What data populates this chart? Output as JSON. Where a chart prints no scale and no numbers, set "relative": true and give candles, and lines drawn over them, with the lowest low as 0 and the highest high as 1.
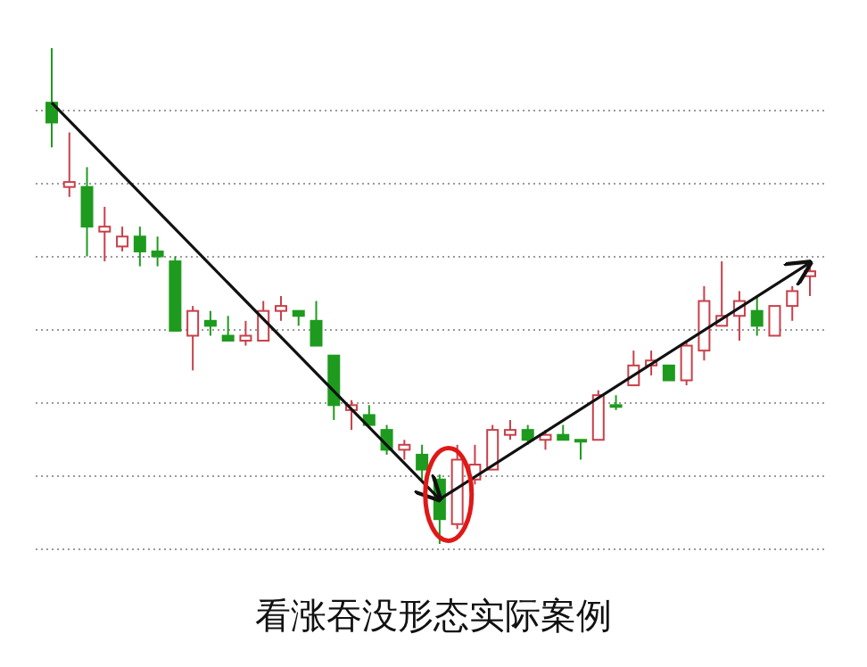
{
  "chart_data": {
    "type": "candlestick",
    "title": "看涨吞没形态实际案例",
    "relative": true,
    "grid": "y",
    "categories": [
      null,
      null,
      null,
      null,
      null,
      null,
      null,
      null,
      null,
      null,
      null,
      null,
      null,
      null,
      null,
      null,
      null,
      null,
      null,
      null,
      null,
      null,
      null,
      null,
      null,
      null,
      null,
      null,
      null,
      null,
      null,
      null,
      null,
      null,
      null,
      null,
      null,
      null,
      null,
      null,
      null,
      null,
      null,
      null
    ],
    "ohlc": [
      [
        0.89,
        1.0,
        0.8,
        0.85
      ],
      [
        0.72,
        0.83,
        0.7,
        0.73
      ],
      [
        0.72,
        0.76,
        0.58,
        0.64
      ],
      [
        0.63,
        0.68,
        0.57,
        0.64
      ],
      [
        0.6,
        0.64,
        0.59,
        0.62
      ],
      [
        0.62,
        0.64,
        0.56,
        0.59
      ],
      [
        0.59,
        0.62,
        0.56,
        0.58
      ],
      [
        0.57,
        0.58,
        0.43,
        0.43
      ],
      [
        0.42,
        0.48,
        0.35,
        0.47
      ],
      [
        0.45,
        0.47,
        0.42,
        0.44
      ],
      [
        0.42,
        0.46,
        0.41,
        0.41
      ],
      [
        0.41,
        0.45,
        0.4,
        0.42
      ],
      [
        0.41,
        0.49,
        0.41,
        0.47
      ],
      [
        0.47,
        0.5,
        0.45,
        0.48
      ],
      [
        0.47,
        0.47,
        0.44,
        0.46
      ],
      [
        0.45,
        0.49,
        0.4,
        0.4
      ],
      [
        0.38,
        0.38,
        0.25,
        0.28
      ],
      [
        0.27,
        0.29,
        0.23,
        0.28
      ],
      [
        0.26,
        0.28,
        0.24,
        0.24
      ],
      [
        0.23,
        0.24,
        0.18,
        0.19
      ],
      [
        0.19,
        0.21,
        0.17,
        0.2
      ],
      [
        0.18,
        0.2,
        0.13,
        0.15
      ],
      [
        0.13,
        0.14,
        0.0,
        0.05
      ],
      [
        0.04,
        0.2,
        0.03,
        0.17
      ],
      [
        0.13,
        0.2,
        0.12,
        0.16
      ],
      [
        0.15,
        0.24,
        0.15,
        0.23
      ],
      [
        0.22,
        0.25,
        0.21,
        0.23
      ],
      [
        0.23,
        0.24,
        0.2,
        0.21
      ],
      [
        0.21,
        0.23,
        0.19,
        0.22
      ],
      [
        0.22,
        0.24,
        0.21,
        0.21
      ],
      [
        0.21,
        0.21,
        0.17,
        0.21
      ],
      [
        0.21,
        0.31,
        0.21,
        0.3
      ],
      [
        0.28,
        0.3,
        0.27,
        0.28
      ],
      [
        0.32,
        0.39,
        0.32,
        0.36
      ],
      [
        0.36,
        0.39,
        0.34,
        0.37
      ],
      [
        0.36,
        0.36,
        0.33,
        0.33
      ],
      [
        0.33,
        0.41,
        0.32,
        0.4
      ],
      [
        0.39,
        0.52,
        0.37,
        0.49
      ],
      [
        0.44,
        0.57,
        0.44,
        0.46
      ],
      [
        0.46,
        0.51,
        0.41,
        0.49
      ],
      [
        0.47,
        0.5,
        0.42,
        0.44
      ],
      [
        0.42,
        0.48,
        0.42,
        0.48
      ],
      [
        0.48,
        0.52,
        0.45,
        0.51
      ],
      [
        0.54,
        0.56,
        0.5,
        0.55
      ]
    ],
    "colors": [
      "#1e9b1e",
      "#c8404a",
      "#1e9b1e",
      "#c8404a",
      "#c8404a",
      "#1e9b1e",
      "#1e9b1e",
      "#1e9b1e",
      "#c8404a",
      "#1e9b1e",
      "#1e9b1e",
      "#c8404a",
      "#c8404a",
      "#c8404a",
      "#1e9b1e",
      "#1e9b1e",
      "#1e9b1e",
      "#c8404a",
      "#1e9b1e",
      "#1e9b1e",
      "#c8404a",
      "#1e9b1e",
      "#1e9b1e",
      "#c8404a",
      "#c8404a",
      "#c8404a",
      "#c8404a",
      "#1e9b1e",
      "#c8404a",
      "#1e9b1e",
      "#1e9b1e",
      "#c8404a",
      "#1e9b1e",
      "#c8404a",
      "#c8404a",
      "#1e9b1e",
      "#c8404a",
      "#c8404a",
      "#c8404a",
      "#c8404a",
      "#1e9b1e",
      "#c8404a",
      "#c8404a",
      "#c8404a"
    ]
  }
}
